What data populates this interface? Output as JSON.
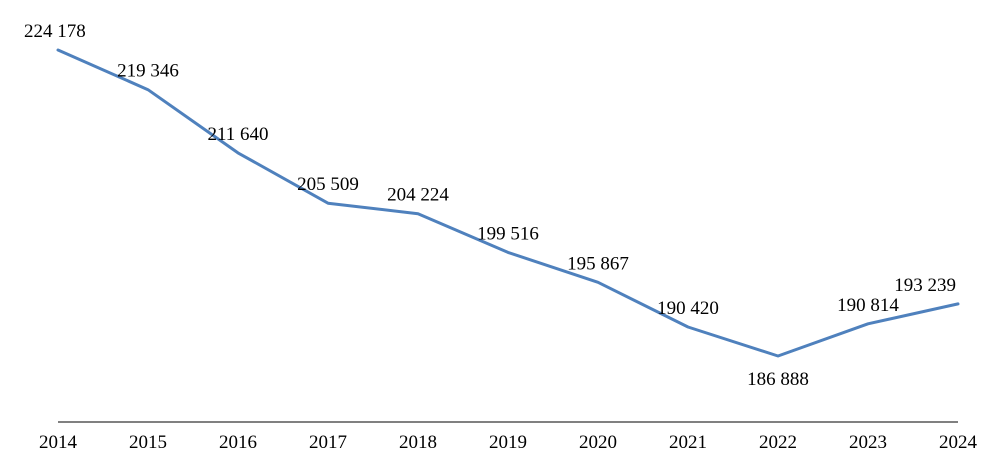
{
  "chart_data": {
    "type": "line",
    "title": "",
    "xlabel": "",
    "ylabel": "",
    "categories": [
      "2014",
      "2015",
      "2016",
      "2017",
      "2018",
      "2019",
      "2020",
      "2021",
      "2022",
      "2023",
      "2024"
    ],
    "series": [
      {
        "values": [
          224178,
          219346,
          211640,
          205509,
          204224,
          199516,
          195867,
          190420,
          186888,
          190814,
          193239
        ],
        "labels": [
          "224 178",
          "219 346",
          "211 640",
          "205 509",
          "204 224",
          "199 516",
          "195 867",
          "190 420",
          "186 888",
          "190 814",
          "193 239"
        ],
        "color": "#4f81bd"
      }
    ],
    "grid": false,
    "legend": "none"
  }
}
